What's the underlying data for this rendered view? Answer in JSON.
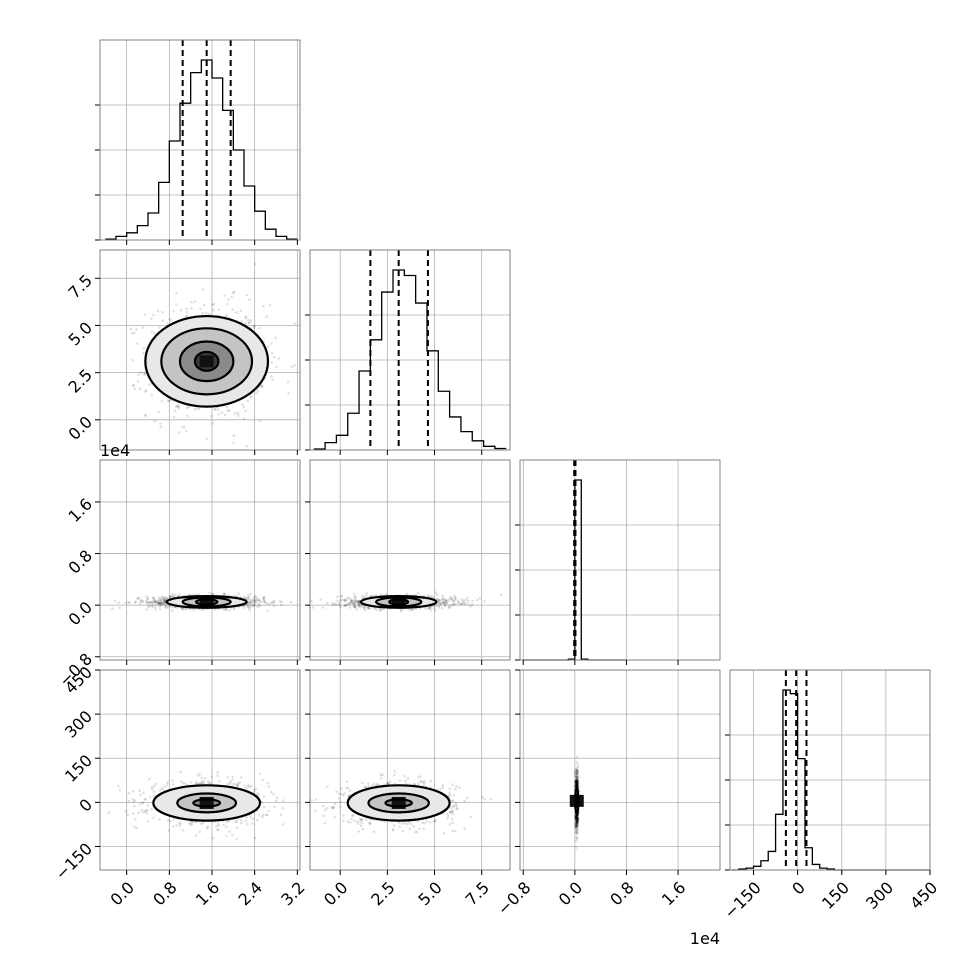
{
  "chart_data": {
    "type": "corner",
    "parameters": 4,
    "axes": [
      {
        "ticks": [
          "0.0",
          "0.8",
          "1.6",
          "2.4",
          "3.2"
        ],
        "tick_values": [
          0.0,
          0.8,
          1.6,
          2.4,
          3.2
        ],
        "range": [
          -0.5,
          3.25
        ]
      },
      {
        "ticks": [
          "0.0",
          "2.5",
          "5.0",
          "7.5"
        ],
        "tick_values": [
          0.0,
          2.5,
          5.0,
          7.5
        ],
        "range": [
          -1.6,
          9.0
        ]
      },
      {
        "ticks": [
          "−0.8",
          "0.0",
          "0.8",
          "1.6"
        ],
        "tick_values": [
          -0.8,
          0.0,
          0.8,
          1.6
        ],
        "range": [
          -0.85,
          2.25
        ],
        "offset_label": "1e4"
      },
      {
        "ticks": [
          "−150",
          "0",
          "150",
          "300",
          "450"
        ],
        "tick_values": [
          -150,
          0,
          150,
          300,
          450
        ],
        "range": [
          -230,
          450
        ]
      }
    ],
    "histograms": [
      {
        "bin_edges": [
          -0.4,
          -0.2,
          0.0,
          0.2,
          0.4,
          0.6,
          0.8,
          1.0,
          1.2,
          1.4,
          1.6,
          1.8,
          2.0,
          2.2,
          2.4,
          2.6,
          2.8,
          3.0,
          3.2
        ],
        "counts": [
          0.005,
          0.02,
          0.04,
          0.08,
          0.15,
          0.32,
          0.55,
          0.76,
          0.93,
          1.0,
          0.9,
          0.72,
          0.5,
          0.3,
          0.16,
          0.06,
          0.02,
          0.005
        ],
        "quantiles": [
          1.05,
          1.5,
          1.95
        ]
      },
      {
        "bin_edges": [
          -1.4,
          -0.8,
          -0.2,
          0.4,
          1.0,
          1.6,
          2.2,
          2.8,
          3.4,
          4.0,
          4.6,
          5.2,
          5.8,
          6.4,
          7.0,
          7.6,
          8.2,
          8.8
        ],
        "counts": [
          0.005,
          0.04,
          0.08,
          0.2,
          0.43,
          0.6,
          0.86,
          0.98,
          0.95,
          0.8,
          0.54,
          0.32,
          0.18,
          0.1,
          0.05,
          0.02,
          0.008
        ],
        "quantiles": [
          1.6,
          3.1,
          4.65
        ]
      },
      {
        "bin_edges": [
          -0.8,
          -0.7,
          -0.6,
          -0.5,
          -0.4,
          -0.3,
          -0.2,
          -0.1,
          0.0,
          0.1,
          0.2,
          0.3,
          0.4,
          0.5,
          0.6,
          0.7,
          0.8
        ],
        "counts": [
          0,
          0,
          0,
          0,
          0,
          0,
          0,
          0.005,
          1.0,
          0.005,
          0,
          0,
          0,
          0,
          0,
          0,
          0
        ],
        "quantiles": [
          -0.01,
          0.0,
          0.01
        ]
      },
      {
        "bin_edges": [
          -225,
          -200,
          -175,
          -150,
          -125,
          -100,
          -75,
          -50,
          -25,
          0,
          25,
          50,
          75,
          100,
          125,
          150,
          175,
          200,
          225,
          250,
          275,
          300,
          325,
          350,
          375,
          400,
          425,
          450
        ],
        "counts": [
          0,
          0.005,
          0.01,
          0.02,
          0.05,
          0.1,
          0.3,
          0.97,
          0.95,
          0.6,
          0.12,
          0.03,
          0.01,
          0.005,
          0,
          0,
          0,
          0,
          0,
          0,
          0,
          0,
          0,
          0,
          0,
          0,
          0
        ],
        "quantiles": [
          -40,
          -5,
          30
        ]
      }
    ],
    "pairs": [
      {
        "row": 1,
        "col": 0,
        "center": [
          1.5,
          3.1
        ],
        "spread": [
          0.55,
          1.5
        ],
        "contours": [
          [
            0.22,
            0.5
          ],
          [
            0.5,
            1.05
          ],
          [
            0.85,
            1.75
          ],
          [
            1.15,
            2.4
          ]
        ]
      },
      {
        "row": 2,
        "col": 0,
        "center": [
          1.5,
          0.05
        ],
        "spread": [
          0.55,
          0.05
        ],
        "contours": [
          [
            0.2,
            0.04
          ],
          [
            0.45,
            0.07
          ],
          [
            0.75,
            0.09
          ]
        ]
      },
      {
        "row": 2,
        "col": 1,
        "center": [
          3.1,
          0.05
        ],
        "spread": [
          1.5,
          0.05
        ],
        "contours": [
          [
            0.5,
            0.04
          ],
          [
            1.2,
            0.07
          ],
          [
            2.0,
            0.09
          ]
        ]
      },
      {
        "row": 3,
        "col": 0,
        "center": [
          1.5,
          -2
        ],
        "spread": [
          0.55,
          35
        ],
        "contours": [
          [
            0.25,
            12
          ],
          [
            0.55,
            32
          ],
          [
            1.0,
            60
          ]
        ]
      },
      {
        "row": 3,
        "col": 1,
        "center": [
          3.1,
          -2
        ],
        "spread": [
          1.5,
          35
        ],
        "contours": [
          [
            0.7,
            12
          ],
          [
            1.6,
            32
          ],
          [
            2.7,
            60
          ]
        ]
      },
      {
        "row": 3,
        "col": 2,
        "center": [
          0.03,
          5
        ],
        "spread": [
          0.01,
          45
        ],
        "contours": [
          [
            0.01,
            20
          ],
          [
            0.025,
            40
          ]
        ]
      }
    ]
  }
}
